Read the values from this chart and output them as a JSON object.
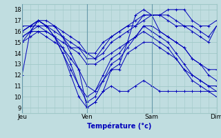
{
  "xlabel": "Température (°c)",
  "background_color": "#c0dde0",
  "grid_color": "#a0c8c8",
  "line_color": "#0000bb",
  "ylim": [
    8.5,
    18.5
  ],
  "yticks": [
    9,
    10,
    11,
    12,
    13,
    14,
    15,
    16,
    17,
    18
  ],
  "day_labels": [
    "Jeu",
    "Ven",
    "Sam",
    "Dim"
  ],
  "day_positions": [
    0,
    8,
    16,
    24
  ],
  "lines": [
    [
      12.0,
      16.0,
      17.0,
      16.5,
      16.0,
      15.5,
      14.0,
      12.5,
      9.0,
      9.5,
      10.5,
      11.0,
      10.5,
      10.5,
      11.0,
      11.5,
      11.0,
      10.5,
      10.5,
      10.5,
      10.5,
      10.5,
      10.5,
      10.5,
      10.5
    ],
    [
      15.0,
      16.0,
      17.0,
      16.5,
      15.5,
      14.0,
      12.0,
      10.0,
      9.0,
      9.5,
      10.5,
      12.5,
      13.0,
      15.0,
      17.5,
      18.0,
      17.5,
      16.0,
      15.5,
      15.0,
      14.5,
      13.5,
      13.0,
      12.0,
      11.5
    ],
    [
      15.5,
      16.0,
      16.5,
      16.5,
      15.5,
      14.5,
      13.0,
      11.0,
      9.5,
      10.0,
      11.5,
      13.0,
      13.5,
      14.5,
      15.5,
      16.0,
      15.5,
      15.0,
      14.5,
      13.5,
      12.5,
      11.5,
      11.0,
      10.5,
      10.0
    ],
    [
      16.0,
      16.5,
      16.5,
      16.0,
      15.5,
      14.0,
      12.5,
      11.0,
      10.0,
      10.5,
      12.0,
      13.5,
      14.0,
      15.0,
      15.5,
      16.5,
      16.0,
      15.5,
      15.0,
      14.0,
      13.0,
      12.0,
      11.5,
      11.0,
      10.5
    ],
    [
      15.5,
      16.0,
      16.0,
      15.5,
      15.0,
      14.5,
      13.5,
      12.5,
      11.0,
      10.5,
      11.5,
      12.5,
      12.5,
      14.0,
      14.5,
      15.0,
      15.0,
      14.5,
      14.0,
      13.5,
      12.5,
      12.0,
      11.5,
      11.0,
      11.0
    ],
    [
      16.0,
      16.5,
      17.0,
      16.5,
      16.5,
      15.5,
      15.0,
      14.5,
      14.0,
      13.5,
      14.0,
      15.0,
      15.5,
      16.0,
      16.5,
      17.0,
      17.5,
      17.5,
      17.5,
      17.0,
      16.5,
      16.0,
      15.5,
      15.0,
      16.5
    ],
    [
      16.0,
      16.5,
      17.0,
      16.5,
      16.5,
      16.0,
      15.5,
      15.0,
      14.0,
      14.0,
      15.0,
      15.5,
      16.0,
      16.5,
      16.5,
      17.5,
      17.5,
      17.5,
      17.0,
      16.5,
      16.5,
      16.5,
      16.0,
      15.5,
      16.5
    ],
    [
      16.5,
      16.5,
      17.0,
      17.0,
      16.5,
      15.5,
      14.5,
      14.5,
      13.5,
      13.5,
      14.5,
      15.5,
      16.0,
      16.5,
      17.0,
      17.5,
      17.5,
      17.5,
      18.0,
      18.0,
      18.0,
      17.0,
      16.5,
      16.5,
      17.0
    ],
    [
      15.0,
      15.5,
      16.0,
      16.0,
      15.5,
      15.0,
      14.5,
      14.0,
      13.0,
      13.0,
      13.5,
      14.0,
      14.5,
      15.0,
      15.5,
      16.5,
      16.5,
      16.0,
      15.5,
      15.0,
      14.5,
      13.5,
      13.0,
      12.5,
      12.5
    ]
  ]
}
